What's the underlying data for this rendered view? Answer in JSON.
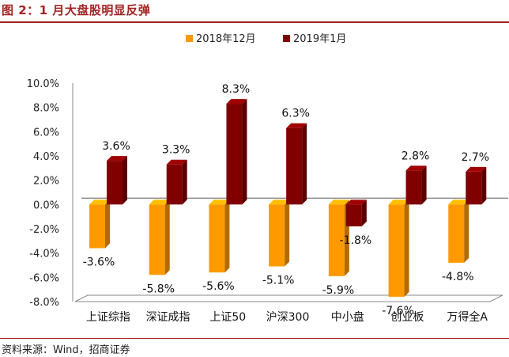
{
  "header": {
    "title": "图 2：1 月大盘股明显反弹"
  },
  "footer": {
    "source": "资料来源：Wind，招商证券"
  },
  "chart_data": {
    "type": "bar",
    "title": "",
    "xlabel": "",
    "ylabel": "",
    "categories": [
      "上证综指",
      "深证成指",
      "上证50",
      "沪深300",
      "中小盘",
      "创业板",
      "万得全A"
    ],
    "series": [
      {
        "name": "2018年12月",
        "color": "#ff9900",
        "values": [
          -3.6,
          -5.8,
          -5.6,
          -5.1,
          -5.9,
          -7.6,
          -4.8
        ],
        "labels": [
          "-3.6%",
          "-5.8%",
          "-5.6%",
          "-5.1%",
          "-5.9%",
          "-7.6%",
          "-4.8%"
        ]
      },
      {
        "name": "2019年1月",
        "color": "#800000",
        "values": [
          3.6,
          3.3,
          8.3,
          6.3,
          -1.8,
          2.8,
          2.7
        ],
        "labels": [
          "3.6%",
          "3.3%",
          "8.3%",
          "6.3%",
          "-1.8%",
          "2.8%",
          "2.7%"
        ]
      }
    ],
    "ylim": [
      -8,
      10
    ],
    "yticks": [
      10,
      8,
      6,
      4,
      2,
      0,
      -2,
      -4,
      -6,
      -8
    ],
    "ytick_labels": [
      "10.0%",
      "8.0%",
      "6.0%",
      "4.0%",
      "2.0%",
      "0.0%",
      "-2.0%",
      "-4.0%",
      "-6.0%",
      "-8.0%"
    ],
    "grid": false,
    "legend_position": "top-center"
  }
}
